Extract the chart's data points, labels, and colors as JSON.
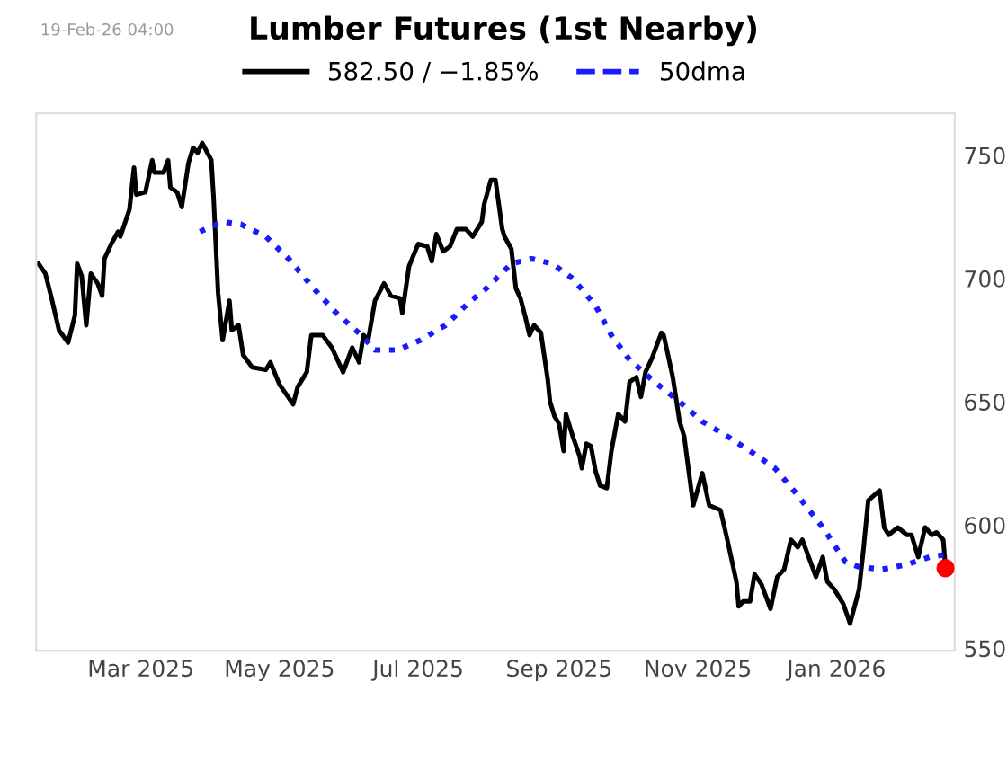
{
  "chart_data": {
    "type": "line",
    "title": "Lumber Futures (1st Nearby)",
    "annotations": [
      "19-Feb-26 04:00"
    ],
    "series": [
      {
        "name": "582.50 / −1.85%",
        "color": "#000000",
        "line_style": "solid",
        "x": [
          "2025-01-15",
          "2025-01-18",
          "2025-01-21",
          "2025-01-24",
          "2025-01-28",
          "2025-01-31",
          "2025-02-01",
          "2025-02-03",
          "2025-02-05",
          "2025-02-07",
          "2025-02-10",
          "2025-02-12",
          "2025-02-13",
          "2025-02-16",
          "2025-02-19",
          "2025-02-20",
          "2025-02-24",
          "2025-02-26",
          "2025-02-27",
          "2025-03-03",
          "2025-03-06",
          "2025-03-07",
          "2025-03-11",
          "2025-03-13",
          "2025-03-14",
          "2025-03-17",
          "2025-03-19",
          "2025-03-22",
          "2025-03-24",
          "2025-03-26",
          "2025-03-28",
          "2025-04-01",
          "2025-04-02",
          "2025-04-04",
          "2025-04-06",
          "2025-04-09",
          "2025-04-10",
          "2025-04-13",
          "2025-04-15",
          "2025-04-19",
          "2025-04-25",
          "2025-04-27",
          "2025-05-01",
          "2025-05-07",
          "2025-05-09",
          "2025-05-13",
          "2025-05-15",
          "2025-05-20",
          "2025-05-24",
          "2025-05-29",
          "2025-06-02",
          "2025-06-05",
          "2025-06-07",
          "2025-06-09",
          "2025-06-12",
          "2025-06-16",
          "2025-06-19",
          "2025-06-23",
          "2025-06-24",
          "2025-06-27",
          "2025-07-01",
          "2025-07-05",
          "2025-07-07",
          "2025-07-09",
          "2025-07-12",
          "2025-07-15",
          "2025-07-18",
          "2025-07-22",
          "2025-07-25",
          "2025-07-29",
          "2025-07-30",
          "2025-08-02",
          "2025-08-04",
          "2025-08-07",
          "2025-08-08",
          "2025-08-11",
          "2025-08-13",
          "2025-08-15",
          "2025-08-17",
          "2025-08-19",
          "2025-08-21",
          "2025-08-24",
          "2025-08-27",
          "2025-08-28",
          "2025-08-30",
          "2025-09-01",
          "2025-09-03",
          "2025-09-04",
          "2025-09-07",
          "2025-09-10",
          "2025-09-11",
          "2025-09-13",
          "2025-09-15",
          "2025-09-17",
          "2025-09-19",
          "2025-09-22",
          "2025-09-24",
          "2025-09-27",
          "2025-09-30",
          "2025-10-02",
          "2025-10-05",
          "2025-10-07",
          "2025-10-09",
          "2025-10-12",
          "2025-10-16",
          "2025-10-17",
          "2025-10-21",
          "2025-10-24",
          "2025-10-26",
          "2025-10-30",
          "2025-11-03",
          "2025-11-06",
          "2025-11-11",
          "2025-11-14",
          "2025-11-18",
          "2025-11-19",
          "2025-11-21",
          "2025-11-24",
          "2025-11-26",
          "2025-11-29",
          "2025-12-03",
          "2025-12-06",
          "2025-12-09",
          "2025-12-12",
          "2025-12-15",
          "2025-12-17",
          "2025-12-21",
          "2025-12-23",
          "2025-12-26",
          "2025-12-28",
          "2025-12-31",
          "2026-01-04",
          "2026-01-07",
          "2026-01-11",
          "2026-01-13",
          "2026-01-15",
          "2026-01-20",
          "2026-01-22",
          "2026-01-24",
          "2026-01-28",
          "2026-02-01",
          "2026-02-03",
          "2026-02-06",
          "2026-02-09",
          "2026-02-12",
          "2026-02-14",
          "2026-02-17",
          "2026-02-18"
        ],
        "values": [
          706,
          702,
          691,
          679,
          674,
          685,
          706,
          701,
          681,
          702,
          698,
          693,
          708,
          714,
          719,
          717,
          728,
          745,
          734,
          735,
          748,
          743,
          743,
          748,
          737,
          735,
          729,
          747,
          753,
          751,
          755,
          748,
          733,
          694,
          675,
          691,
          679,
          681,
          669,
          664,
          663,
          666,
          657,
          649,
          656,
          662,
          677,
          677,
          672,
          662,
          672,
          666,
          677,
          675,
          691,
          698,
          693,
          692,
          686,
          705,
          714,
          713,
          707,
          718,
          711,
          713,
          720,
          720,
          717,
          723,
          730,
          740,
          740,
          720,
          717,
          712,
          696,
          692,
          685,
          677,
          681,
          678,
          659,
          650,
          644,
          641,
          630,
          645,
          636,
          628,
          623,
          633,
          632,
          622,
          616,
          615,
          630,
          645,
          642,
          658,
          660,
          652,
          662,
          668,
          678,
          677,
          660,
          642,
          636,
          608,
          621,
          608,
          606,
          594,
          577,
          567,
          569,
          569,
          580,
          576,
          566,
          579,
          582,
          594,
          591,
          594,
          584,
          579,
          587,
          577,
          574,
          568,
          560,
          574,
          591,
          610,
          614,
          599,
          596,
          599,
          596,
          596,
          587,
          599,
          596,
          597,
          594,
          582.5
        ]
      },
      {
        "name": "50dma",
        "color": "#1a1aff",
        "line_style": "dotted",
        "x": [
          "2025-03-27",
          "2025-04-06",
          "2025-04-14",
          "2025-04-25",
          "2025-05-05",
          "2025-05-16",
          "2025-05-26",
          "2025-06-06",
          "2025-06-12",
          "2025-06-22",
          "2025-07-02",
          "2025-07-13",
          "2025-07-23",
          "2025-07-31",
          "2025-08-11",
          "2025-08-20",
          "2025-08-29",
          "2025-09-07",
          "2025-09-17",
          "2025-09-24",
          "2025-10-02",
          "2025-10-13",
          "2025-10-24",
          "2025-11-03",
          "2025-11-14",
          "2025-11-24",
          "2025-12-05",
          "2025-12-15",
          "2025-12-26",
          "2026-01-05",
          "2026-01-11",
          "2026-01-21",
          "2026-02-01",
          "2026-02-11",
          "2026-02-18"
        ],
        "values": [
          719,
          723,
          722,
          717,
          708,
          696,
          686,
          677,
          671,
          671,
          675,
          681,
          690,
          696,
          706,
          708,
          706,
          700,
          689,
          677,
          667,
          658,
          650,
          642,
          636,
          630,
          623,
          612,
          599,
          585,
          583,
          582,
          584,
          587,
          588
        ]
      },
      {
        "type": "scatter",
        "marker": "circle",
        "color": "#ff0000",
        "x": [
          "2026-02-18"
        ],
        "values": [
          582.5
        ]
      }
    ],
    "xlim": [
      "2025-01-14",
      "2026-02-22"
    ],
    "xticks": [
      {
        "value": "2025-03-01",
        "label": "Mar 2025"
      },
      {
        "value": "2025-05-01",
        "label": "May 2025"
      },
      {
        "value": "2025-07-01",
        "label": "Jul 2025"
      },
      {
        "value": "2025-09-01",
        "label": "Sep 2025"
      },
      {
        "value": "2025-11-01",
        "label": "Nov 2025"
      },
      {
        "value": "2026-01-01",
        "label": "Jan 2026"
      }
    ],
    "ylim": [
      549,
      767
    ],
    "yticks": [
      550,
      600,
      650,
      700,
      750
    ],
    "grid": false,
    "legend": "top"
  }
}
